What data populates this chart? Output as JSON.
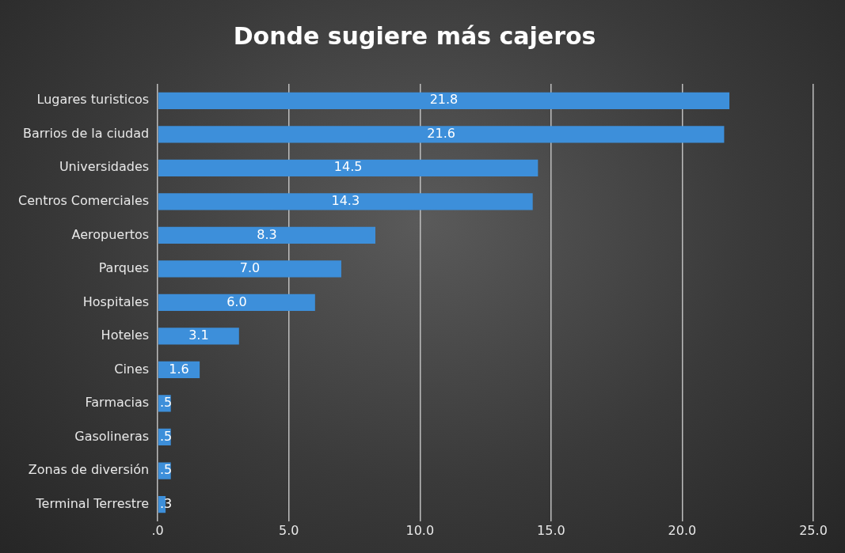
{
  "chart_data": {
    "type": "bar",
    "orientation": "horizontal",
    "title": "Donde sugiere más cajeros",
    "categories": [
      "Lugares turisticos",
      "Barrios de la ciudad",
      "Universidades",
      "Centros Comerciales",
      "Aeropuertos",
      "Parques",
      "Hospitales",
      "Hoteles",
      "Cines",
      "Farmacias",
      "Gasolineras",
      "Zonas de diversión",
      "Terminal Terrestre"
    ],
    "values": [
      21.8,
      21.6,
      14.5,
      14.3,
      8.3,
      7.0,
      6.0,
      3.1,
      1.6,
      0.5,
      0.5,
      0.5,
      0.3
    ],
    "value_labels": [
      "21.8",
      "21.6",
      "14.5",
      "14.3",
      "8.3",
      "7.0",
      "6.0",
      "3.1",
      "1.6",
      ".5",
      ".5",
      ".5",
      ".3"
    ],
    "color": "#3d8fda",
    "xlim": [
      0,
      25
    ],
    "xticks": [
      {
        "value": 0,
        "label": ".0"
      },
      {
        "value": 5,
        "label": "5.0"
      },
      {
        "value": 10,
        "label": "10.0"
      },
      {
        "value": 15,
        "label": "15.0"
      },
      {
        "value": 20,
        "label": "20.0"
      },
      {
        "value": 25,
        "label": "25.0"
      }
    ],
    "grid": "x",
    "legend": false
  }
}
